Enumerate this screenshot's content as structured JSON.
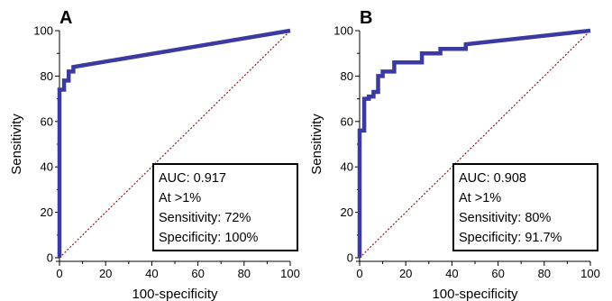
{
  "chart_data": [
    {
      "type": "line",
      "panel_label": "A",
      "xlabel": "100-specificity",
      "ylabel": "Sensitivity",
      "xlim": [
        0,
        100
      ],
      "ylim": [
        0,
        100
      ],
      "x_ticks": [
        0,
        20,
        40,
        60,
        80,
        100
      ],
      "y_ticks": [
        0,
        20,
        40,
        60,
        80,
        100
      ],
      "grid": false,
      "legend": "none",
      "series": [
        {
          "color": "#3a3aa0",
          "x": [
            0,
            0,
            2,
            2,
            4,
            4,
            6,
            6,
            100
          ],
          "y": [
            0,
            74,
            74,
            78,
            78,
            82,
            82,
            84,
            100
          ]
        },
        {
          "color": "#8b1a1a",
          "line_style": "dotted",
          "x": [
            0,
            100
          ],
          "y": [
            0,
            100
          ]
        }
      ],
      "annotation_lines": [
        "AUC: 0.917",
        "At >1%",
        "Sensitivity: 72%",
        "Specificity: 100%"
      ]
    },
    {
      "type": "line",
      "panel_label": "B",
      "xlabel": "100-specificity",
      "ylabel": "Sensitivity",
      "xlim": [
        0,
        100
      ],
      "ylim": [
        0,
        100
      ],
      "x_ticks": [
        0,
        20,
        40,
        60,
        80,
        100
      ],
      "y_ticks": [
        0,
        20,
        40,
        60,
        80,
        100
      ],
      "grid": false,
      "legend": "none",
      "series": [
        {
          "color": "#3a3aa0",
          "x": [
            0,
            0,
            2,
            2,
            4,
            4,
            6,
            6,
            8,
            8,
            10,
            10,
            15,
            15,
            27,
            27,
            35,
            35,
            46,
            46,
            100
          ],
          "y": [
            0,
            56,
            56,
            70,
            70,
            71,
            71,
            73,
            73,
            80,
            80,
            82,
            82,
            86,
            86,
            90,
            90,
            92,
            92,
            94,
            100
          ]
        },
        {
          "color": "#8b1a1a",
          "line_style": "dotted",
          "x": [
            0,
            100
          ],
          "y": [
            0,
            100
          ]
        }
      ],
      "annotation_lines": [
        "AUC: 0.908",
        "At >1%",
        "Sensitivity: 80%",
        "Specificity: 91.7%"
      ]
    }
  ]
}
